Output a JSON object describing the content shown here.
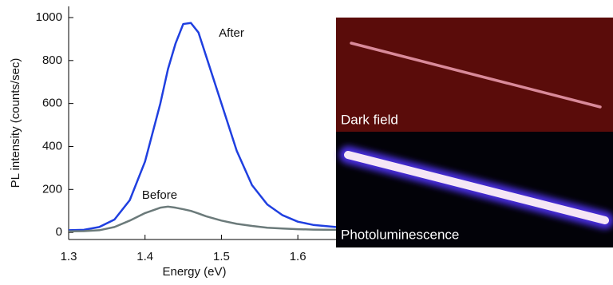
{
  "chart_data": {
    "type": "line",
    "xlabel": "Energy (eV)",
    "ylabel": "PL intensity (counts/sec)",
    "x": [
      1.3,
      1.32,
      1.34,
      1.36,
      1.38,
      1.4,
      1.42,
      1.43,
      1.44,
      1.45,
      1.46,
      1.47,
      1.48,
      1.5,
      1.52,
      1.54,
      1.56,
      1.58,
      1.6,
      1.62,
      1.65
    ],
    "series": [
      {
        "name": "After",
        "color": "#1f3fe0",
        "values": [
          10,
          12,
          25,
          60,
          150,
          330,
          600,
          760,
          880,
          970,
          975,
          930,
          820,
          600,
          380,
          220,
          130,
          80,
          50,
          35,
          25
        ]
      },
      {
        "name": "Before",
        "color": "#6b7a7a",
        "values": [
          5,
          6,
          10,
          25,
          55,
          90,
          115,
          120,
          115,
          108,
          100,
          88,
          75,
          55,
          40,
          30,
          22,
          18,
          15,
          13,
          12
        ]
      }
    ],
    "xlim": [
      1.3,
      1.65
    ],
    "ylim": [
      -33,
      1052
    ],
    "xticks": [
      1.3,
      1.4,
      1.5,
      1.6
    ],
    "yticks": [
      0,
      200,
      400,
      600,
      800,
      1000
    ]
  },
  "panels": [
    {
      "label": "Dark field"
    },
    {
      "label": "Photoluminescence"
    }
  ]
}
